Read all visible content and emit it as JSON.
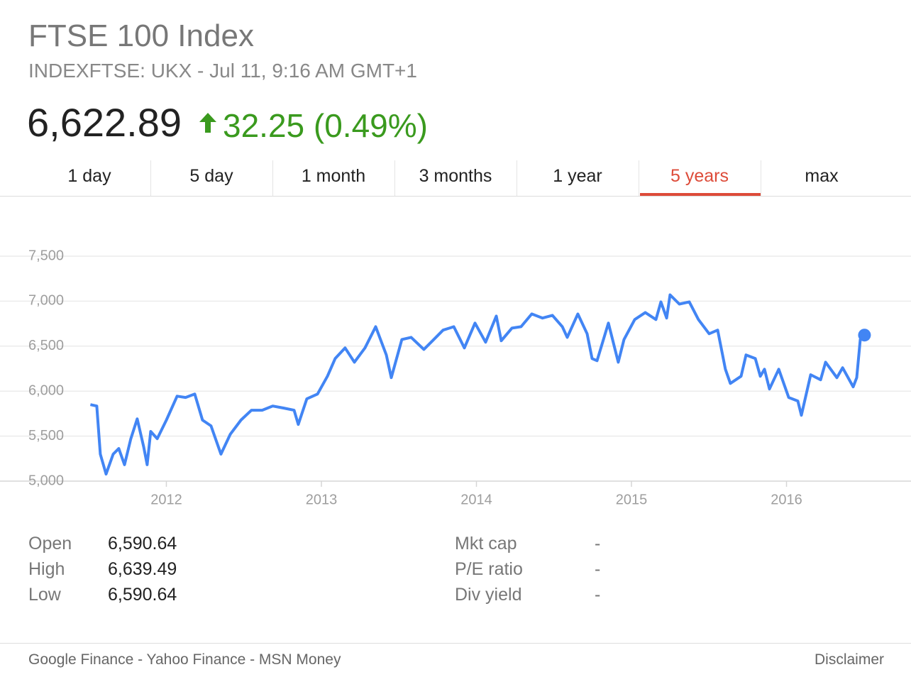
{
  "header": {
    "title": "FTSE 100 Index",
    "subtitle": "INDEXFTSE: UKX - Jul 11, 9:16 AM GMT+1"
  },
  "quote": {
    "price": "6,622.89",
    "change": "32.25 (0.49%)"
  },
  "tabs": {
    "items": [
      "1 day",
      "5 day",
      "1 month",
      "3 months",
      "1 year",
      "5 years",
      "max"
    ],
    "selected": 5
  },
  "chart_data": {
    "type": "line",
    "color": "#4285f4",
    "grid": true,
    "x": [
      2011.51,
      2011.551,
      2011.574,
      2011.611,
      2011.657,
      2011.693,
      2011.73,
      2011.771,
      2011.812,
      2011.854,
      2011.876,
      2011.899,
      2011.941,
      2012.0,
      2012.069,
      2012.124,
      2012.183,
      2012.233,
      2012.288,
      2012.352,
      2012.412,
      2012.481,
      2012.549,
      2012.618,
      2012.686,
      2012.755,
      2012.824,
      2012.851,
      2012.906,
      2012.975,
      2013.039,
      2013.089,
      2013.153,
      2013.213,
      2013.281,
      2013.35,
      2013.419,
      2013.451,
      2013.519,
      2013.579,
      2013.661,
      2013.725,
      2013.785,
      2013.854,
      2013.922,
      2013.991,
      2014.059,
      2014.128,
      2014.16,
      2014.229,
      2014.288,
      2014.357,
      2014.426,
      2014.49,
      2014.554,
      2014.586,
      2014.654,
      2014.714,
      2014.746,
      2014.778,
      2014.851,
      2014.915,
      2014.952,
      2015.021,
      2015.089,
      2015.158,
      2015.19,
      2015.227,
      2015.249,
      2015.309,
      2015.373,
      2015.432,
      2015.501,
      2015.556,
      2015.606,
      2015.638,
      2015.707,
      2015.739,
      2015.799,
      2015.831,
      2015.858,
      2015.89,
      2015.95,
      2016.014,
      2016.073,
      2016.096,
      2016.156,
      2016.22,
      2016.252,
      2016.325,
      2016.362,
      2016.43,
      2016.453,
      2016.476,
      2016.503
    ],
    "values": [
      5850,
      5834,
      5300,
      5078,
      5300,
      5362,
      5182,
      5472,
      5692,
      5378,
      5182,
      5552,
      5472,
      5678,
      5944,
      5930,
      5968,
      5678,
      5614,
      5300,
      5520,
      5678,
      5788,
      5788,
      5834,
      5812,
      5788,
      5630,
      5914,
      5968,
      6166,
      6362,
      6480,
      6322,
      6480,
      6716,
      6402,
      6150,
      6574,
      6598,
      6464,
      6574,
      6678,
      6716,
      6480,
      6756,
      6544,
      6834,
      6560,
      6700,
      6716,
      6858,
      6812,
      6842,
      6716,
      6598,
      6858,
      6638,
      6362,
      6338,
      6756,
      6322,
      6574,
      6796,
      6874,
      6796,
      6992,
      6812,
      7070,
      6968,
      6992,
      6796,
      6638,
      6678,
      6244,
      6086,
      6166,
      6402,
      6362,
      6166,
      6244,
      6024,
      6244,
      5930,
      5890,
      5732,
      6182,
      6126,
      6322,
      6150,
      6260,
      6048,
      6150,
      6574,
      6622.89
    ],
    "xlim": [
      2011.11,
      2016.62
    ],
    "xticks": [
      2012,
      2013,
      2014,
      2015,
      2016
    ],
    "ylim": [
      5000,
      7500
    ],
    "yticks": [
      {
        "value": 5000,
        "label": "5,000"
      },
      {
        "value": 5500,
        "label": "5,500"
      },
      {
        "value": 6000,
        "label": "6,000"
      },
      {
        "value": 6500,
        "label": "6,500"
      },
      {
        "value": 7000,
        "label": "7,000"
      },
      {
        "value": 7500,
        "label": "7,500"
      }
    ]
  },
  "stats": {
    "left": [
      [
        "Open",
        "6,590.64"
      ],
      [
        "High",
        "6,639.49"
      ],
      [
        "Low",
        "6,590.64"
      ]
    ],
    "right": [
      [
        "Mkt cap",
        "-"
      ],
      [
        "P/E ratio",
        "-"
      ],
      [
        "Div yield",
        "-"
      ]
    ]
  },
  "footer": {
    "sources": "Google Finance - Yahoo Finance - MSN Money",
    "disclaimer": "Disclaimer"
  }
}
